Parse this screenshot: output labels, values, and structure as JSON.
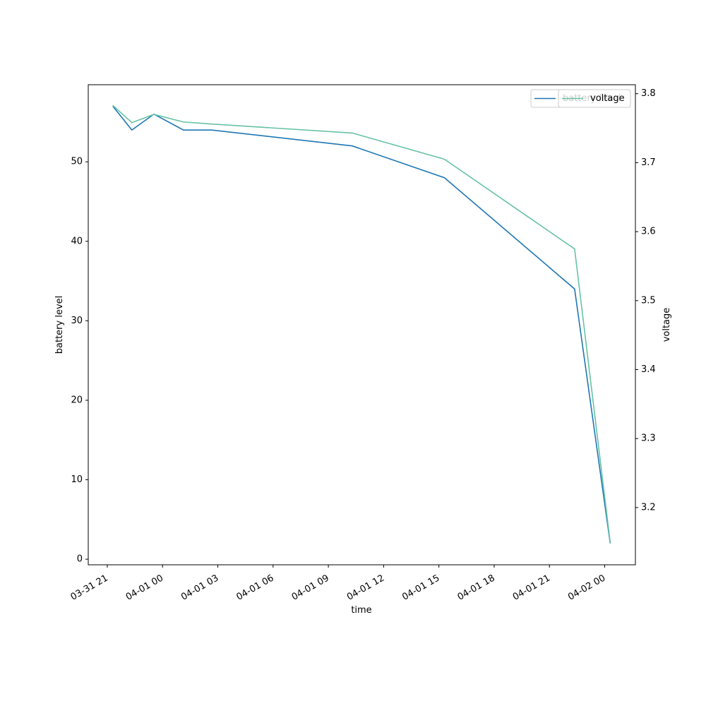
{
  "chart_data": {
    "type": "line",
    "xlabel": "time",
    "ylabel": "battery level",
    "y2label": "voltage",
    "x": [
      "03-31 21:18",
      "03-31 22:20",
      "03-31 23:32",
      "04-01 01:08",
      "04-01 02:40",
      "04-01 10:18",
      "04-01 15:18",
      "04-01 22:22",
      "04-02 00:18"
    ],
    "series": [
      {
        "name": "battery level",
        "color": "#1f77b4",
        "values": [
          57,
          54,
          56,
          54,
          54,
          52,
          48,
          34,
          2
        ]
      },
      {
        "name": "voltage",
        "color": "#66c2a5",
        "axis": "y2",
        "values": [
          3.783,
          3.758,
          3.77,
          3.759,
          3.756,
          3.743,
          3.705,
          3.575,
          3.149
        ]
      }
    ],
    "xlim": [
      "03-31 19:58",
      "04-02 01:40"
    ],
    "xticks": [
      "03-31 21",
      "04-01 00",
      "04-01 03",
      "04-01 06",
      "04-01 09",
      "04-01 12",
      "04-01 15",
      "04-01 18",
      "04-01 21",
      "04-02 00"
    ],
    "ylim": [
      -0.7,
      59.7
    ],
    "yticks": [
      0,
      10,
      20,
      30,
      40,
      50
    ],
    "y2lim": [
      3.117,
      3.813
    ],
    "y2ticks": [
      3.2,
      3.3,
      3.4,
      3.5,
      3.6,
      3.7,
      3.8
    ],
    "legend": "upper right"
  }
}
